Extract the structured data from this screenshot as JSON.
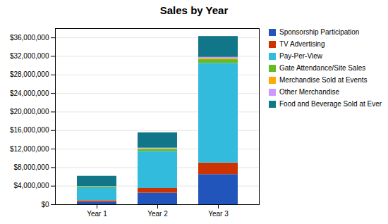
{
  "chart_data": {
    "type": "bar",
    "title": "Sales by Year",
    "categories": [
      "Year 1",
      "Year 2",
      "Year 3"
    ],
    "series": [
      {
        "name": "Sponsorship Participation",
        "color": "#2255bb",
        "values": [
          500000,
          2500000,
          6500000
        ]
      },
      {
        "name": "TV Advertising",
        "color": "#cc3300",
        "values": [
          350000,
          1000000,
          2500000
        ]
      },
      {
        "name": "Pay-Per-View",
        "color": "#33bbdd",
        "values": [
          2800000,
          8000000,
          21500000
        ]
      },
      {
        "name": "Gate Attendance/Site Sales",
        "color": "#66bb22",
        "values": [
          180000,
          450000,
          800000
        ]
      },
      {
        "name": "Merchandise Sold at Events",
        "color": "#ffaa00",
        "values": [
          50000,
          130000,
          250000
        ]
      },
      {
        "name": "Other Merchandise",
        "color": "#cc99ff",
        "values": [
          50000,
          130000,
          250000
        ]
      },
      {
        "name": "Food and Beverage Sold at Ever",
        "color": "#117788",
        "values": [
          2200000,
          3300000,
          4500000
        ]
      }
    ],
    "stacked": true,
    "ylim": [
      0,
      38000000
    ],
    "yticks": [
      {
        "value": 0,
        "label": "$0"
      },
      {
        "value": 4000000,
        "label": "$4,000,000"
      },
      {
        "value": 8000000,
        "label": "$8,000,000"
      },
      {
        "value": 12000000,
        "label": "$12,000,000"
      },
      {
        "value": 16000000,
        "label": "$16,000,000"
      },
      {
        "value": 20000000,
        "label": "$20,000,000"
      },
      {
        "value": 24000000,
        "label": "$24,000,000"
      },
      {
        "value": 28000000,
        "label": "$28,000,000"
      },
      {
        "value": 32000000,
        "label": "$32,000,000"
      },
      {
        "value": 36000000,
        "label": "$36,000,000"
      }
    ],
    "grid": true,
    "legend": "right"
  }
}
